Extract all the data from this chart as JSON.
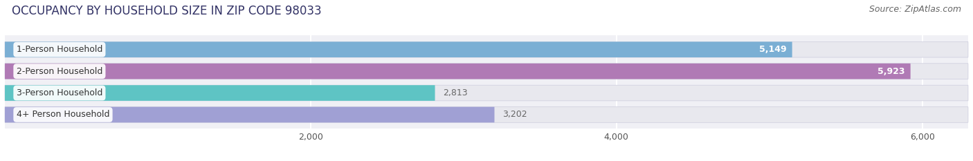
{
  "title": "OCCUPANCY BY HOUSEHOLD SIZE IN ZIP CODE 98033",
  "source": "Source: ZipAtlas.com",
  "categories": [
    "1-Person Household",
    "2-Person Household",
    "3-Person Household",
    "4+ Person Household"
  ],
  "values": [
    5149,
    5923,
    2813,
    3202
  ],
  "bar_colors": [
    "#7bafd4",
    "#b07ab5",
    "#5ec4c4",
    "#a0a0d4"
  ],
  "label_colors": [
    "white",
    "white",
    "#666666",
    "#666666"
  ],
  "background_color": "#ffffff",
  "chart_bg_color": "#f0f0f5",
  "bar_background_color": "#e8e8ee",
  "xlim_max": 6300,
  "xticks": [
    2000,
    4000,
    6000
  ],
  "xtick_labels": [
    "2,000",
    "4,000",
    "6,000"
  ],
  "title_fontsize": 12,
  "source_fontsize": 9,
  "bar_label_fontsize": 9,
  "category_fontsize": 9,
  "tick_fontsize": 9,
  "bar_height": 0.72,
  "bar_gap": 0.28
}
